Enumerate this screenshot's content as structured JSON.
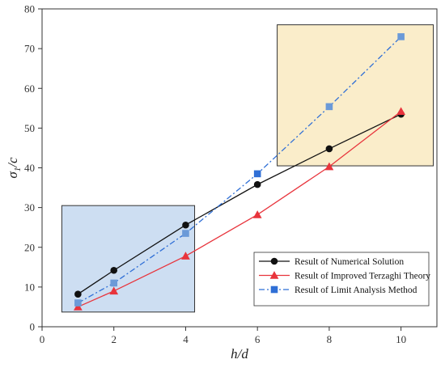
{
  "chart_data": {
    "type": "line",
    "xlabel": "h/d",
    "ylabel_main": "σ",
    "ylabel_sub": "1",
    "ylabel_tail": "/c",
    "xlim": [
      0,
      11
    ],
    "ylim": [
      0,
      80
    ],
    "xticks": [
      0,
      2,
      4,
      6,
      8,
      10
    ],
    "yticks": [
      0,
      10,
      20,
      30,
      40,
      50,
      60,
      70,
      80
    ],
    "grid": false,
    "legend_position": "bottom-right",
    "highlight_regions": [
      {
        "x": [
          0.55,
          4.25
        ],
        "y": [
          3.7,
          30.5
        ],
        "color": "#b8d0ec"
      },
      {
        "x": [
          6.55,
          10.9
        ],
        "y": [
          40.5,
          76.0
        ],
        "color": "#f8e6b4"
      }
    ],
    "series": [
      {
        "name": "Result of Numerical Solution",
        "color": "#111111",
        "marker": "circle",
        "dash": "solid",
        "x": [
          1,
          2,
          4,
          6,
          8,
          10
        ],
        "y": [
          8.2,
          14.2,
          25.6,
          35.8,
          44.8,
          53.5
        ]
      },
      {
        "name": "Result of Improved Terzaghi Theory",
        "color": "#e8343c",
        "marker": "triangle",
        "dash": "solid",
        "x": [
          1,
          2,
          4,
          6,
          8,
          10
        ],
        "y": [
          5.0,
          9.0,
          17.8,
          28.2,
          40.3,
          54.2
        ]
      },
      {
        "name": "Result of Limit Analysis Method",
        "color": "#2f6fd6",
        "marker": "square",
        "dash": "dashdot",
        "x": [
          1,
          2,
          4,
          6,
          8,
          10
        ],
        "y": [
          6.0,
          11.0,
          23.5,
          38.5,
          55.4,
          73.0
        ]
      }
    ]
  }
}
